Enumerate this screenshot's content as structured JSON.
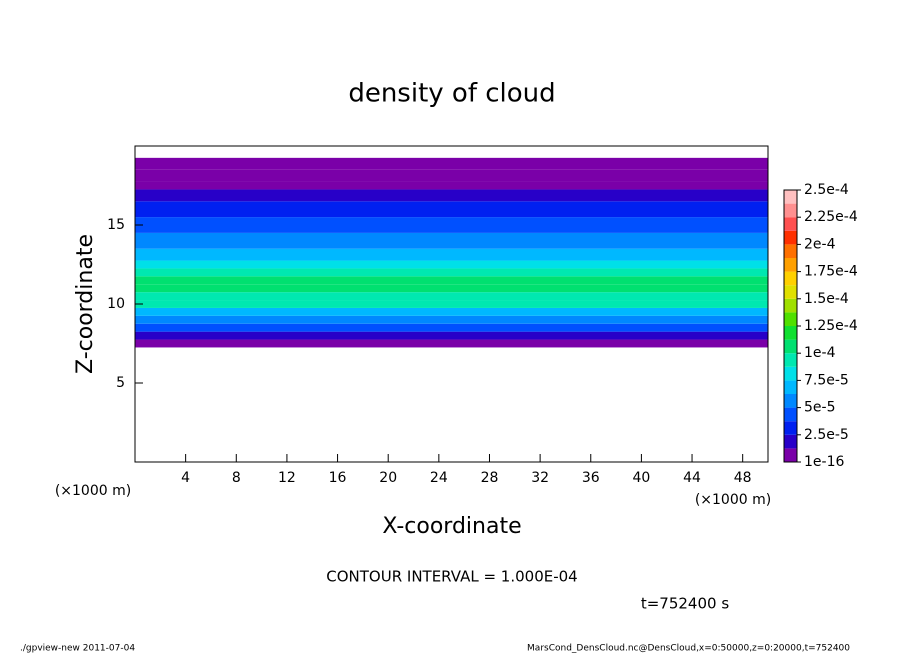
{
  "chart_data": {
    "type": "contour",
    "title": "density of cloud",
    "x_label": "X-coordinate",
    "y_label": "Z-coordinate",
    "x_unit": "(×1000 m)",
    "xlim": [
      0,
      50
    ],
    "xticks": [
      4,
      8,
      12,
      16,
      20,
      24,
      28,
      32,
      36,
      40,
      44,
      48
    ],
    "ylim": [
      0,
      20
    ],
    "yticks": [
      5,
      10,
      15
    ],
    "levels": [
      {
        "value": 1e-16,
        "label": "1e-16"
      },
      {
        "value": 2.5e-05,
        "label": "2.5e-5"
      },
      {
        "value": 5e-05,
        "label": "5e-5"
      },
      {
        "value": 7.5e-05,
        "label": "7.5e-5"
      },
      {
        "value": 0.0001,
        "label": "1e-4"
      },
      {
        "value": 0.000125,
        "label": "1.25e-4"
      },
      {
        "value": 0.00015,
        "label": "1.5e-4"
      },
      {
        "value": 0.000175,
        "label": "1.75e-4"
      },
      {
        "value": 0.0002,
        "label": "2e-4"
      },
      {
        "value": 0.000225,
        "label": "2.25e-4"
      },
      {
        "value": 0.00025,
        "label": "2.5e-4"
      }
    ],
    "colors": [
      "#7a00a8",
      "#2800c8",
      "#0020f0",
      "#0050ff",
      "#0088ff",
      "#00b8ff",
      "#00e0e8",
      "#00e8b0",
      "#00e070",
      "#10e030",
      "#50e000",
      "#a0e000",
      "#e0e000",
      "#ffd000",
      "#ffa000",
      "#ff7000",
      "#ff3000",
      "#ff5050",
      "#ff9090",
      "#ffc0c0"
    ],
    "z": [
      7.5,
      8,
      8.5,
      9,
      9.5,
      10,
      10.5,
      11,
      11.5,
      12,
      12.5,
      13,
      14,
      15,
      16,
      17,
      17.5,
      18,
      19
    ],
    "profile": [
      1e-06,
      2e-05,
      4e-05,
      6e-05,
      7.5e-05,
      9e-05,
      0.0001,
      0.000105,
      0.000105,
      9.5e-05,
      8e-05,
      7e-05,
      6e-05,
      5e-05,
      3.5e-05,
      2e-05,
      1e-05,
      5e-06,
      1e-06
    ],
    "annotation": "CONTOUR INTERVAL = 1.000E-04",
    "time_label": "t=752400 s",
    "footer_left": "./gpview-new  2011-07-04",
    "footer_right": "MarsCond_DensCloud.nc@DensCloud,x=0:50000,z=0:20000,t=752400"
  }
}
